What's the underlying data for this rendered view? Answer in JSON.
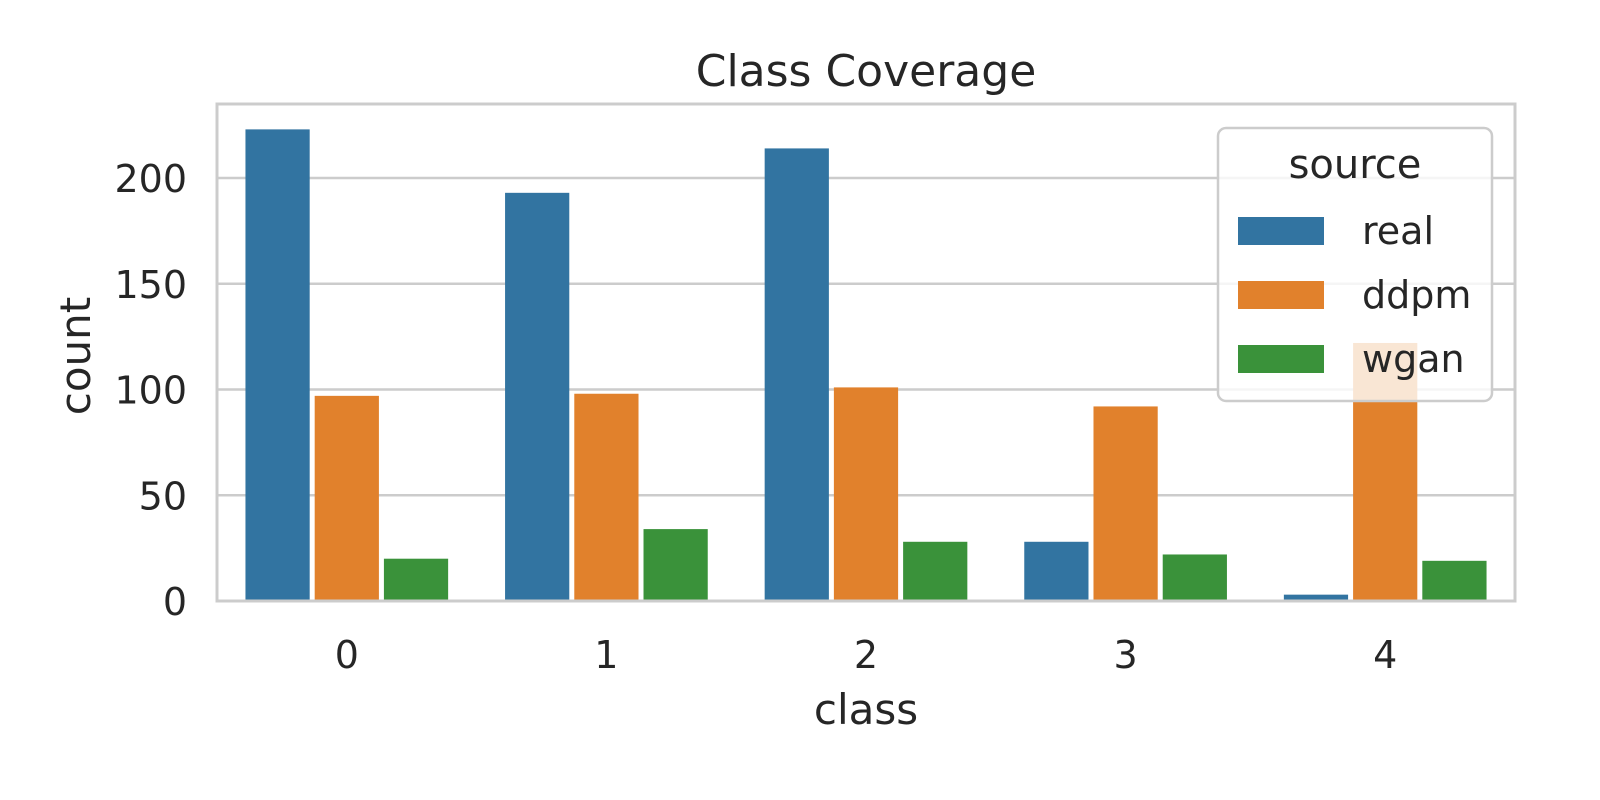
{
  "chart_data": {
    "type": "bar",
    "title": "Class Coverage",
    "xlabel": "class",
    "ylabel": "count",
    "categories": [
      "0",
      "1",
      "2",
      "3",
      "4"
    ],
    "series": [
      {
        "name": "real",
        "color": "#3274a1",
        "values": [
          223,
          193,
          214,
          28,
          3
        ]
      },
      {
        "name": "ddpm",
        "color": "#e1812c",
        "values": [
          97,
          98,
          101,
          92,
          122
        ]
      },
      {
        "name": "wgan",
        "color": "#3a923a",
        "values": [
          20,
          34,
          28,
          22,
          19
        ]
      }
    ],
    "ylim": [
      0,
      235
    ],
    "yticks": [
      0,
      50,
      100,
      150,
      200
    ],
    "grid": true,
    "legend": {
      "title": "source",
      "position": "top-right"
    }
  }
}
